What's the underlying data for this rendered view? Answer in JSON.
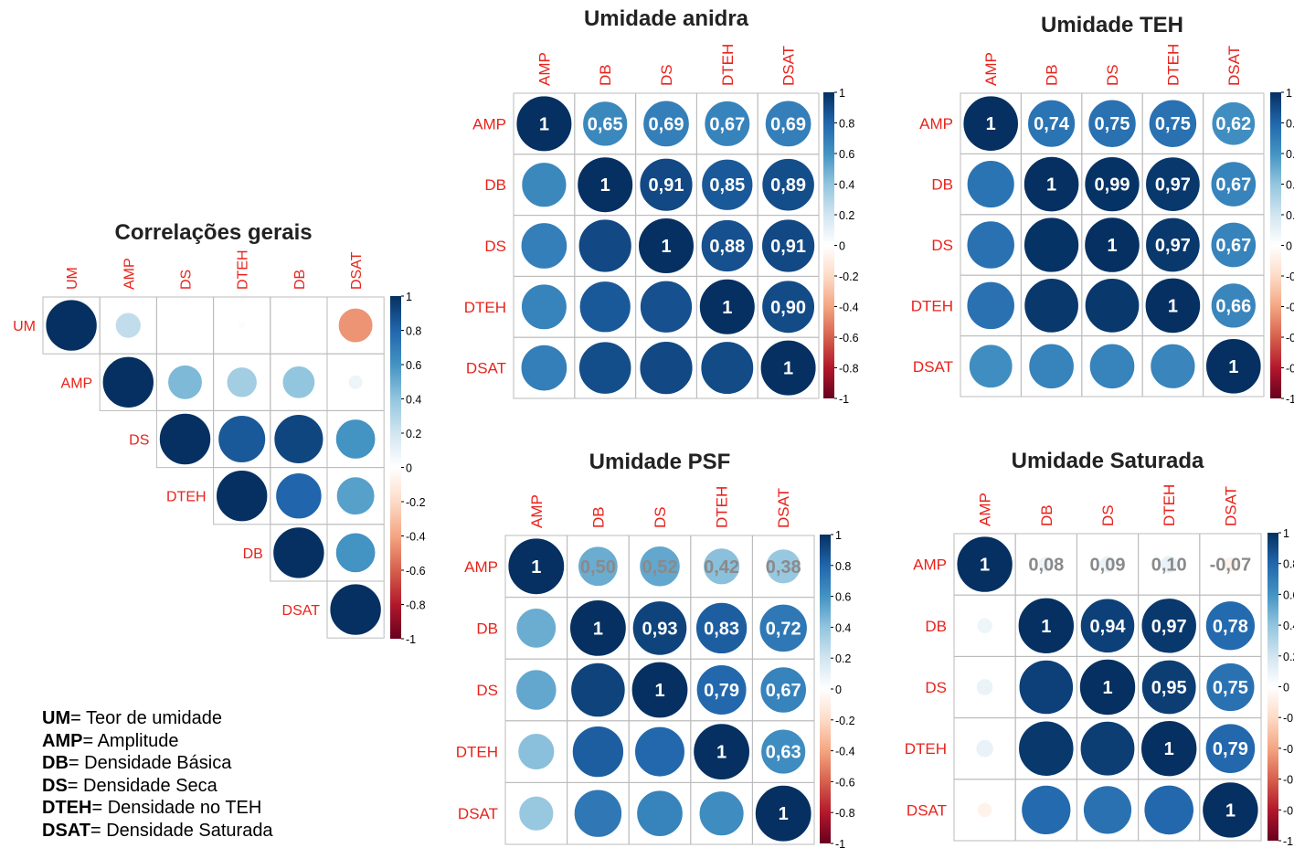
{
  "colors": {
    "scale": [
      "#67001F",
      "#B2182B",
      "#D6604D",
      "#F4A582",
      "#FDDBC7",
      "#FFFFFF",
      "#D1E5F0",
      "#92C5DE",
      "#4393C3",
      "#2166AC",
      "#053061"
    ],
    "label": "#E8231C",
    "grid": "#BBBBBB"
  },
  "colorbar_ticks": [
    "1",
    "0.8",
    "0.6",
    "0.4",
    "0.2",
    "0",
    "-0.2",
    "-0.4",
    "-0.6",
    "-0.8",
    "-1"
  ],
  "legend_items": [
    {
      "abbr": "UM",
      "text": "= Teor de umidade"
    },
    {
      "abbr": "AMP",
      "text": "= Amplitude"
    },
    {
      "abbr": "DB",
      "text": "= Densidade Básica"
    },
    {
      "abbr": "DS",
      "text": "= Densidade Seca"
    },
    {
      "abbr": "DTEH",
      "text": "= Densidade no TEH"
    },
    {
      "abbr": "DSAT",
      "text": "= Densidade Saturada"
    }
  ],
  "chart_data": [
    {
      "type": "heatmap",
      "title": "Correlações gerais",
      "variables": [
        "UM",
        "AMP",
        "DS",
        "DTEH",
        "DB",
        "DSAT"
      ],
      "layout": "upper",
      "matrix": [
        [
          1,
          0.25,
          0,
          0.02,
          0,
          -0.45
        ],
        [
          0.25,
          1,
          0.45,
          0.35,
          0.4,
          0.08
        ],
        [
          0,
          0.45,
          1,
          0.85,
          0.92,
          0.6
        ],
        [
          0.02,
          0.35,
          0.85,
          1,
          0.8,
          0.55
        ],
        [
          0,
          0.4,
          0.92,
          0.8,
          1,
          0.6
        ],
        [
          -0.45,
          0.08,
          0.6,
          0.55,
          0.6,
          1
        ]
      ]
    },
    {
      "type": "heatmap",
      "title": "Umidade anidra",
      "variables": [
        "AMP",
        "DB",
        "DS",
        "DTEH",
        "DSAT"
      ],
      "layout": "mixed",
      "labels": [
        [
          "1",
          "0,65",
          "0,69",
          "0,67",
          "0,69"
        ],
        [
          "",
          "1",
          "0,91",
          "0,85",
          "0,89"
        ],
        [
          "",
          "",
          "1",
          "0,88",
          "0,91"
        ],
        [
          "",
          "",
          "",
          "1",
          "0,90"
        ],
        [
          "",
          "",
          "",
          "",
          "1"
        ]
      ],
      "matrix": [
        [
          1,
          0.65,
          0.69,
          0.67,
          0.69
        ],
        [
          0.65,
          1,
          0.91,
          0.85,
          0.89
        ],
        [
          0.69,
          0.91,
          1,
          0.88,
          0.91
        ],
        [
          0.67,
          0.85,
          0.88,
          1,
          0.9
        ],
        [
          0.69,
          0.89,
          0.91,
          0.9,
          1
        ]
      ]
    },
    {
      "type": "heatmap",
      "title": "Umidade TEH",
      "variables": [
        "AMP",
        "DB",
        "DS",
        "DTEH",
        "DSAT"
      ],
      "layout": "mixed",
      "labels": [
        [
          "1",
          "0,74",
          "0,75",
          "0,75",
          "0,62"
        ],
        [
          "",
          "1",
          "0,99",
          "0,97",
          "0,67"
        ],
        [
          "",
          "",
          "1",
          "0,97",
          "0,67"
        ],
        [
          "",
          "",
          "",
          "1",
          "0,66"
        ],
        [
          "",
          "",
          "",
          "",
          "1"
        ]
      ],
      "matrix": [
        [
          1,
          0.74,
          0.75,
          0.75,
          0.62
        ],
        [
          0.74,
          1,
          0.99,
          0.97,
          0.67
        ],
        [
          0.75,
          0.99,
          1,
          0.97,
          0.67
        ],
        [
          0.75,
          0.97,
          0.97,
          1,
          0.66
        ],
        [
          0.62,
          0.67,
          0.67,
          0.66,
          1
        ]
      ]
    },
    {
      "type": "heatmap",
      "title": "Umidade PSF",
      "variables": [
        "AMP",
        "DB",
        "DS",
        "DTEH",
        "DSAT"
      ],
      "layout": "mixed",
      "labels": [
        [
          "1",
          "0,50",
          "0,52",
          "0,42",
          "0,38"
        ],
        [
          "",
          "1",
          "0,93",
          "0,83",
          "0,72"
        ],
        [
          "",
          "",
          "1",
          "0,79",
          "0,67"
        ],
        [
          "",
          "",
          "",
          "1",
          "0,63"
        ],
        [
          "",
          "",
          "",
          "",
          "1"
        ]
      ],
      "matrix": [
        [
          1,
          0.5,
          0.52,
          0.42,
          0.38
        ],
        [
          0.5,
          1,
          0.93,
          0.83,
          0.72
        ],
        [
          0.52,
          0.93,
          1,
          0.79,
          0.67
        ],
        [
          0.42,
          0.83,
          0.79,
          1,
          0.63
        ],
        [
          0.38,
          0.72,
          0.67,
          0.63,
          1
        ]
      ]
    },
    {
      "type": "heatmap",
      "title": "Umidade Saturada",
      "variables": [
        "AMP",
        "DB",
        "DS",
        "DTEH",
        "DSAT"
      ],
      "layout": "mixed",
      "labels": [
        [
          "1",
          "0,08",
          "0,09",
          "0,10",
          "-0,07"
        ],
        [
          "",
          "1",
          "0,94",
          "0,97",
          "0,78"
        ],
        [
          "",
          "",
          "1",
          "0,95",
          "0,75"
        ],
        [
          "",
          "",
          "",
          "1",
          "0,79"
        ],
        [
          "",
          "",
          "",
          "",
          "1"
        ]
      ],
      "matrix": [
        [
          1,
          0.08,
          0.09,
          0.1,
          -0.07
        ],
        [
          0.08,
          1,
          0.94,
          0.97,
          0.78
        ],
        [
          0.09,
          0.94,
          1,
          0.95,
          0.75
        ],
        [
          0.1,
          0.97,
          0.95,
          1,
          0.79
        ],
        [
          -0.07,
          0.78,
          0.75,
          0.79,
          1
        ]
      ]
    }
  ]
}
